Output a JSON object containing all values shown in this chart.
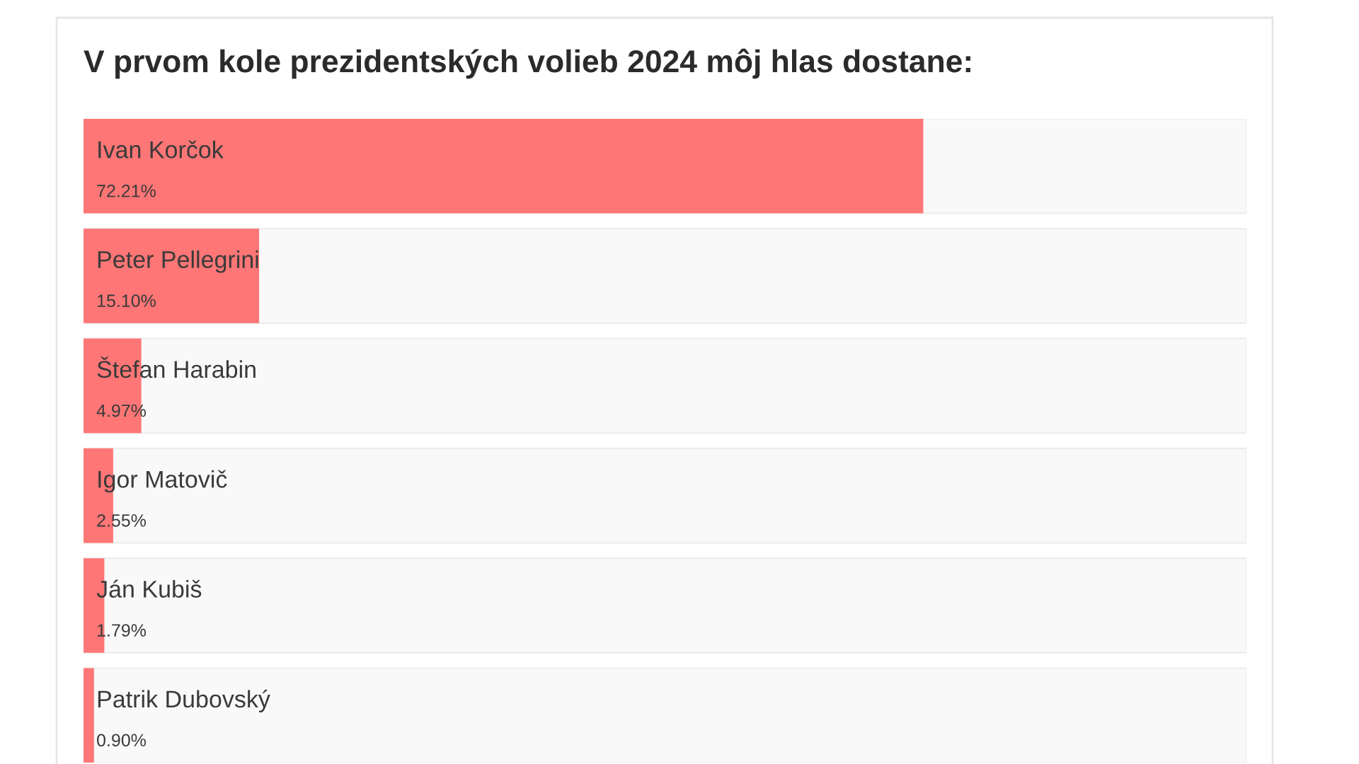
{
  "chart_data": {
    "type": "bar",
    "orientation": "horizontal",
    "title": "V prvom kole prezidentských volieb 2024 môj hlas dostane:",
    "categories": [
      "Ivan Korčok",
      "Peter Pellegrini",
      "Štefan Harabin",
      "Igor Matovič",
      "Ján Kubiš",
      "Patrik Dubovský"
    ],
    "values": [
      72.21,
      15.1,
      4.97,
      2.55,
      1.79,
      0.9
    ],
    "value_labels": [
      "72.21%",
      "15.10%",
      "4.97%",
      "2.55%",
      "1.79%",
      "0.90%"
    ],
    "color": "#ff7676",
    "xlim": [
      0,
      100
    ]
  }
}
